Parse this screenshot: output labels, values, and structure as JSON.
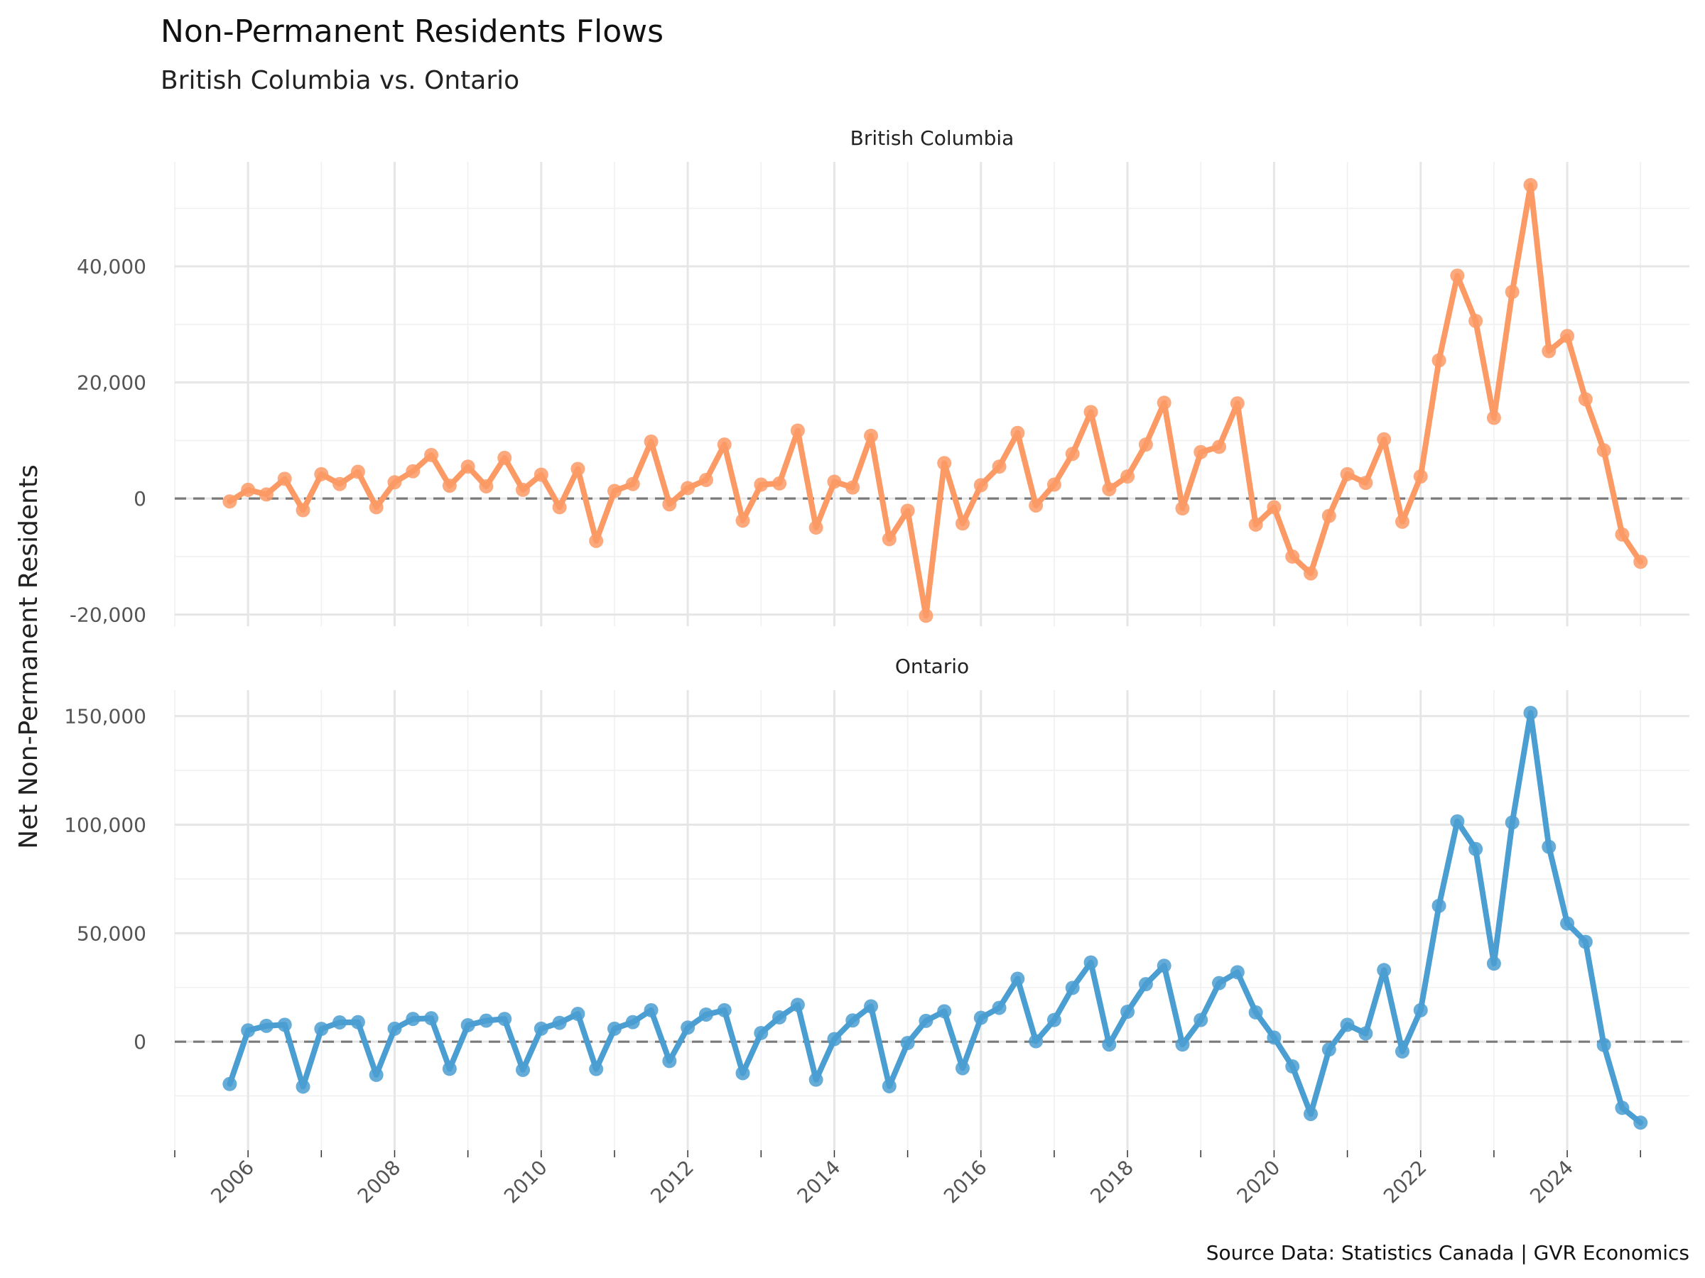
{
  "title": "Non-Permanent Residents Flows",
  "subtitle": "British Columbia vs. Ontario",
  "caption": "Source Data: Statistics Canada | GVR Economics",
  "chart_data": {
    "type": "line",
    "ylabel": "Net Non-Permanent Residents",
    "xlabel": "",
    "x_ticks": [
      "2006",
      "2008",
      "2010",
      "2012",
      "2014",
      "2016",
      "2018",
      "2020",
      "2022",
      "2024"
    ],
    "x_range": [
      "2005-01",
      "2025-09"
    ],
    "grid": true,
    "zero_reference_line": "dashed",
    "x": [
      "2005-10",
      "2006-01",
      "2006-04",
      "2006-07",
      "2006-10",
      "2007-01",
      "2007-04",
      "2007-07",
      "2007-10",
      "2008-01",
      "2008-04",
      "2008-07",
      "2008-10",
      "2009-01",
      "2009-04",
      "2009-07",
      "2009-10",
      "2010-01",
      "2010-04",
      "2010-07",
      "2010-10",
      "2011-01",
      "2011-04",
      "2011-07",
      "2011-10",
      "2012-01",
      "2012-04",
      "2012-07",
      "2012-10",
      "2013-01",
      "2013-04",
      "2013-07",
      "2013-10",
      "2014-01",
      "2014-04",
      "2014-07",
      "2014-10",
      "2015-01",
      "2015-04",
      "2015-07",
      "2015-10",
      "2016-01",
      "2016-04",
      "2016-07",
      "2016-10",
      "2017-01",
      "2017-04",
      "2017-07",
      "2017-10",
      "2018-01",
      "2018-04",
      "2018-07",
      "2018-10",
      "2019-01",
      "2019-04",
      "2019-07",
      "2019-10",
      "2020-01",
      "2020-04",
      "2020-07",
      "2020-10",
      "2021-01",
      "2021-04",
      "2021-07",
      "2021-10",
      "2022-01",
      "2022-04",
      "2022-07",
      "2022-10",
      "2023-01",
      "2023-04",
      "2023-07",
      "2023-10",
      "2024-01",
      "2024-04",
      "2024-07",
      "2024-10",
      "2025-01"
    ],
    "panels": [
      {
        "name": "British Columbia",
        "color": "#fc9a66",
        "y_ticks": [
          -20000,
          0,
          20000,
          40000
        ],
        "y_tick_labels": [
          "-20,000",
          "0",
          "20,000",
          "40,000"
        ],
        "ylim": [
          -22000,
          58000
        ],
        "values": [
          -500,
          1500,
          700,
          3400,
          -2000,
          4200,
          2500,
          4600,
          -1500,
          2800,
          4700,
          7500,
          2200,
          5500,
          2100,
          7000,
          1500,
          4100,
          -1500,
          5100,
          -7300,
          1300,
          2500,
          9800,
          -1000,
          1800,
          3200,
          9300,
          -3800,
          2400,
          2600,
          11700,
          -5000,
          2900,
          1900,
          10800,
          -7000,
          -2100,
          -20200,
          6100,
          -4300,
          2300,
          5500,
          11300,
          -1200,
          2400,
          7700,
          14900,
          1600,
          3800,
          9300,
          16500,
          -1700,
          8000,
          8900,
          16400,
          -4500,
          -1500,
          -10000,
          -12900,
          -3000,
          4200,
          2700,
          10200,
          -4000,
          3800,
          23800,
          38400,
          30600,
          13900,
          35600,
          54000,
          25400,
          28000,
          17100,
          8300,
          -6200,
          -10900
        ]
      },
      {
        "name": "Ontario",
        "color": "#4a9ed1",
        "y_ticks": [
          0,
          50000,
          100000,
          150000
        ],
        "y_tick_labels": [
          "0",
          "50,000",
          "100,000",
          "150,000"
        ],
        "ylim": [
          -50000,
          162000
        ],
        "values": [
          -19500,
          5200,
          7300,
          7800,
          -20700,
          5900,
          8900,
          9000,
          -15300,
          6000,
          10500,
          10800,
          -12500,
          7600,
          9700,
          10500,
          -13000,
          6000,
          8700,
          12800,
          -12600,
          6000,
          9000,
          14500,
          -8900,
          6500,
          12500,
          14500,
          -14500,
          4000,
          11200,
          17000,
          -17500,
          1200,
          9800,
          16300,
          -20500,
          -600,
          9600,
          14000,
          -12200,
          11000,
          15600,
          29000,
          200,
          10000,
          24800,
          36500,
          -1300,
          13800,
          26500,
          35000,
          -1300,
          10000,
          27000,
          32000,
          13500,
          1900,
          -11400,
          -33300,
          -3600,
          7800,
          3800,
          33000,
          -4500,
          14500,
          62600,
          101500,
          88800,
          36000,
          101000,
          151500,
          89800,
          54500,
          46000,
          -1500,
          -30500,
          -37300
        ]
      }
    ]
  }
}
